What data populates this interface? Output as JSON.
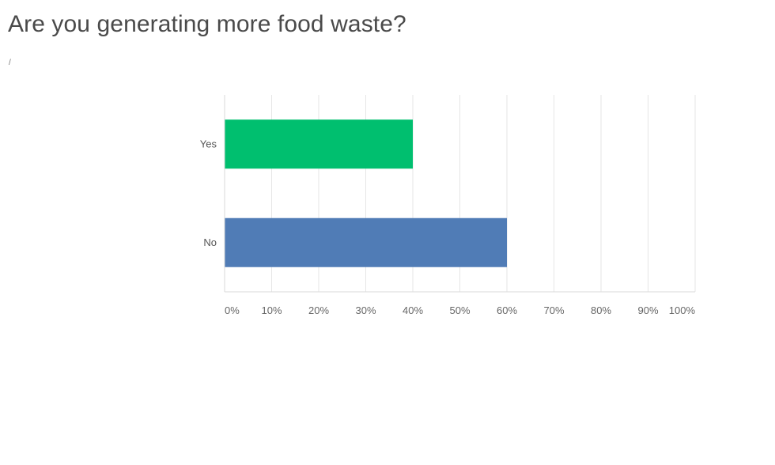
{
  "page": {
    "title": "Are you generating more food waste?",
    "subtitle": "/"
  },
  "chart_data": {
    "type": "bar",
    "orientation": "horizontal",
    "categories": [
      "Yes",
      "No"
    ],
    "values": [
      40,
      60
    ],
    "colors": [
      "#00bf6f",
      "#507cb6"
    ],
    "xlim": [
      0,
      100
    ],
    "xticks": [
      0,
      10,
      20,
      30,
      40,
      50,
      60,
      70,
      80,
      90,
      100
    ],
    "tick_labels": [
      "0%",
      "10%",
      "20%",
      "30%",
      "40%",
      "50%",
      "60%",
      "70%",
      "80%",
      "90%",
      "100%"
    ],
    "grid": true,
    "legend": "none"
  }
}
